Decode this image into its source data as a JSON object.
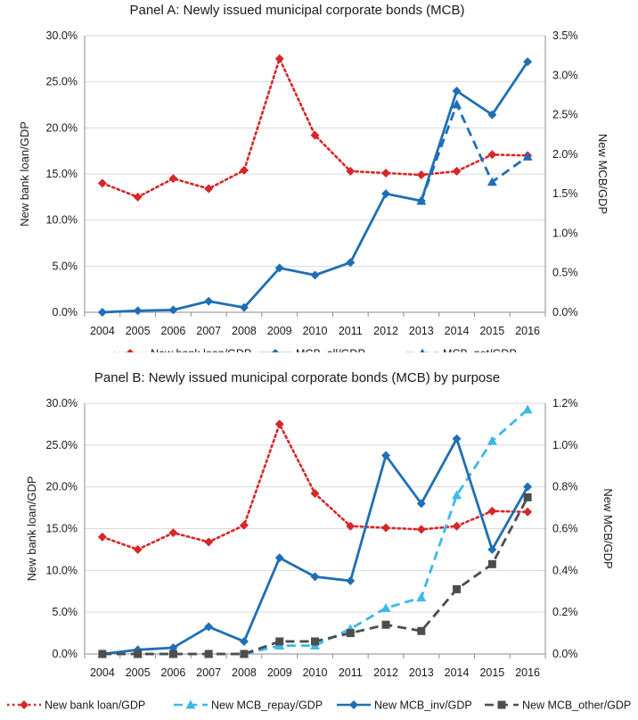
{
  "chart_data": [
    {
      "type": "line",
      "title": "Panel A: Newly issued municipal corporate bonds (MCB)",
      "xlabel": "",
      "ylabel_left": "New bank loan/GDP",
      "ylabel_right": "New MCB/GDP",
      "categories": [
        "2004",
        "2005",
        "2006",
        "2007",
        "2008",
        "2009",
        "2010",
        "2011",
        "2012",
        "2013",
        "2014",
        "2015",
        "2016"
      ],
      "ylim_left": [
        0,
        0.3
      ],
      "ylim_right": [
        0,
        0.035
      ],
      "left_ticks": [
        "0.0%",
        "5.0%",
        "10.0%",
        "15.0%",
        "20.0%",
        "25.0%",
        "30.0%"
      ],
      "right_ticks": [
        "0.0%",
        "0.5%",
        "1.0%",
        "1.5%",
        "2.0%",
        "2.5%",
        "3.0%",
        "3.5%"
      ],
      "grid": true,
      "legend": "bottom",
      "series": [
        {
          "name": "New bank loan/GDP",
          "axis": "left",
          "color": "#d62728",
          "style": "dotted",
          "marker": "diamond",
          "values": [
            0.14,
            0.125,
            0.145,
            0.134,
            0.154,
            0.275,
            0.192,
            0.153,
            0.151,
            0.149,
            0.153,
            0.171,
            0.17
          ]
        },
        {
          "name": "MCB_all/GDP",
          "axis": "right",
          "color": "#1f6fb4",
          "style": "solid",
          "marker": "diamond",
          "values": [
            0.0,
            0.0002,
            0.0003,
            0.0014,
            0.0006,
            0.0056,
            0.0047,
            0.0063,
            0.015,
            0.0141,
            0.028,
            0.025,
            0.0317
          ]
        },
        {
          "name": "MCB_net/GDP",
          "axis": "right",
          "color": "#1f6fb4",
          "style": "dashed",
          "marker": "triangle",
          "values": [
            null,
            null,
            null,
            null,
            null,
            null,
            null,
            null,
            null,
            0.0141,
            0.0263,
            0.0165,
            0.0197
          ]
        }
      ]
    },
    {
      "type": "line",
      "title": "Panel B: Newly issued municipal corporate bonds (MCB)  by purpose",
      "xlabel": "",
      "ylabel_left": "New bank loan/GDP",
      "ylabel_right": "New MCB/GDP",
      "categories": [
        "2004",
        "2005",
        "2006",
        "2007",
        "2008",
        "2009",
        "2010",
        "2011",
        "2012",
        "2013",
        "2014",
        "2015",
        "2016"
      ],
      "ylim_left": [
        0,
        0.3
      ],
      "ylim_right": [
        0,
        0.012
      ],
      "left_ticks": [
        "0.0%",
        "5.0%",
        "10.0%",
        "15.0%",
        "20.0%",
        "25.0%",
        "30.0%"
      ],
      "right_ticks": [
        "0.0%",
        "0.2%",
        "0.4%",
        "0.6%",
        "0.8%",
        "1.0%",
        "1.2%"
      ],
      "grid": true,
      "legend": "bottom",
      "series": [
        {
          "name": "New bank loan/GDP",
          "axis": "left",
          "color": "#d62728",
          "style": "dotted",
          "marker": "diamond",
          "values": [
            0.14,
            0.125,
            0.145,
            0.134,
            0.154,
            0.275,
            0.192,
            0.153,
            0.151,
            0.149,
            0.153,
            0.171,
            0.17
          ]
        },
        {
          "name": "New MCB_repay/GDP",
          "axis": "right",
          "color": "#3cb8ec",
          "style": "dashed",
          "marker": "triangle",
          "values": [
            0.0,
            0.0,
            0.0,
            0.0,
            0.0,
            0.0004,
            0.0004,
            0.0012,
            0.0022,
            0.0027,
            0.0076,
            0.0102,
            0.0117
          ]
        },
        {
          "name": "New MCB_inv/GDP",
          "axis": "right",
          "color": "#1f6fb4",
          "style": "solid",
          "marker": "diamond",
          "values": [
            0.0,
            0.0002,
            0.0003,
            0.0013,
            0.0006,
            0.0046,
            0.0037,
            0.0035,
            0.0095,
            0.0072,
            0.0103,
            0.005,
            0.008
          ]
        },
        {
          "name": "New MCB_other/GDP",
          "axis": "right",
          "color": "#4d4d4d",
          "style": "dashed",
          "marker": "square",
          "values": [
            0.0,
            0.0,
            0.0,
            0.0,
            0.0,
            0.0006,
            0.0006,
            0.001,
            0.0014,
            0.0011,
            0.0031,
            0.0043,
            0.0075
          ]
        }
      ]
    }
  ]
}
